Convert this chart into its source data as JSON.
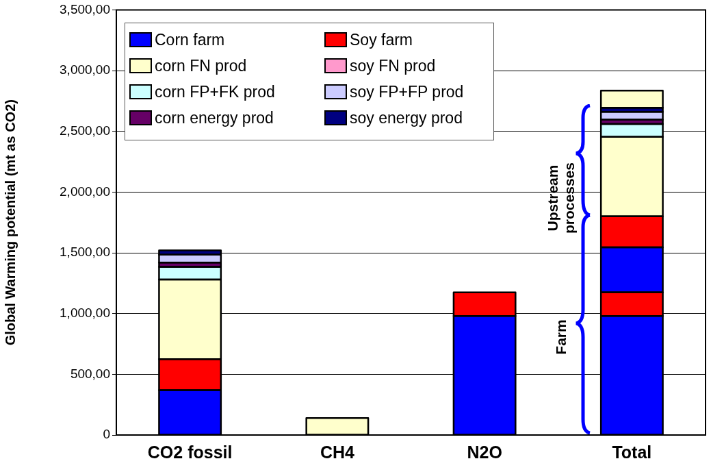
{
  "chart_data": {
    "type": "bar",
    "stacked": true,
    "ylabel": "Global Warming potential (mt as CO2)",
    "categories": [
      "CO2 fossil",
      "CH4",
      "N2O",
      "Total"
    ],
    "series": [
      {
        "name": "Corn farm",
        "color": "#0000ff",
        "values": [
          370,
          null,
          980,
          980
        ]
      },
      {
        "name": "Soy farm",
        "color": "#ff0000",
        "values": [
          255,
          null,
          195,
          195
        ]
      },
      {
        "color": "#0000ff",
        "values": [
          null,
          null,
          null,
          370
        ]
      },
      {
        "color": "#ff0000",
        "values": [
          null,
          null,
          null,
          255
        ]
      },
      {
        "name": "corn FN prod",
        "color": "#ffffcc",
        "values": [
          655,
          140,
          null,
          655
        ]
      },
      {
        "name": "corn FP+FK prod",
        "color": "#ccffff",
        "values": [
          105,
          null,
          null,
          105
        ]
      },
      {
        "name": "corn energy prod",
        "color": "#660066",
        "values": [
          35,
          null,
          null,
          35
        ]
      },
      {
        "name": "soy FN prod",
        "color": "#ff99cc",
        "values": [
          null,
          null,
          null,
          null
        ]
      },
      {
        "name": "soy FP+FP prod",
        "color": "#ccccff",
        "values": [
          65,
          null,
          null,
          65
        ]
      },
      {
        "name": "soy energy prod",
        "color": "#000080",
        "values": [
          35,
          null,
          null,
          35
        ]
      },
      {
        "color": "#ffffcc",
        "values": [
          null,
          null,
          null,
          140
        ]
      }
    ],
    "ylim": [
      0,
      3500
    ],
    "yticks": [
      0,
      {
        "value": 500,
        "label": "500,00"
      },
      {
        "value": 1000,
        "label": "1,000,00"
      },
      {
        "value": 1500,
        "label": "1,500,00"
      },
      {
        "value": 2000,
        "label": "2,000,00"
      },
      {
        "value": 2500,
        "label": "2,500,00"
      },
      {
        "value": 3000,
        "label": "3,000,00"
      },
      {
        "value": 3500,
        "label": "3,500,00"
      }
    ],
    "grid": "y",
    "legend": "top left",
    "annotations": [
      "Upstream processes",
      "Farm"
    ]
  }
}
